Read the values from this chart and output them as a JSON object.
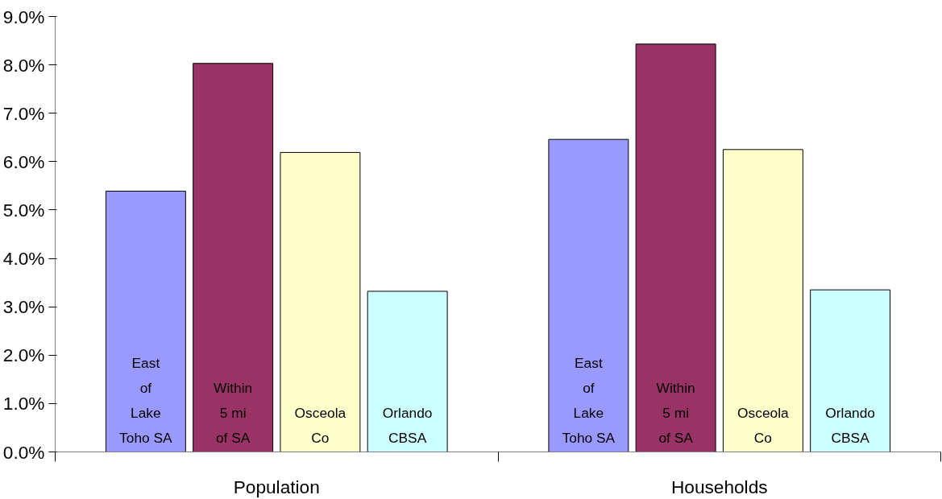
{
  "chart_data": {
    "type": "bar",
    "categories": [
      "Population",
      "Households"
    ],
    "series": [
      {
        "name": "East\nof\nLake\nToho SA",
        "color": "#9999ff",
        "values": [
          5.39,
          6.46
        ]
      },
      {
        "name": "Within\n5 mi\nof SA",
        "color": "#993366",
        "values": [
          8.03,
          8.43
        ]
      },
      {
        "name": "Osceola\nCo",
        "color": "#ffffcc",
        "values": [
          6.19,
          6.25
        ]
      },
      {
        "name": "Orlando\nCBSA",
        "color": "#ccffff",
        "values": [
          3.32,
          3.35
        ]
      }
    ],
    "ylim": [
      0,
      9
    ],
    "yticks": [
      {
        "value": 0,
        "label": "0.0%"
      },
      {
        "value": 1,
        "label": "1.0%"
      },
      {
        "value": 2,
        "label": "2.0%"
      },
      {
        "value": 3,
        "label": "3.0%"
      },
      {
        "value": 4,
        "label": "4.0%"
      },
      {
        "value": 5,
        "label": "5.0%"
      },
      {
        "value": 6,
        "label": "6.0%"
      },
      {
        "value": 7,
        "label": "7.0%"
      },
      {
        "value": 8,
        "label": "8.0%"
      },
      {
        "value": 9,
        "label": "9.0%"
      }
    ],
    "grid": false,
    "legend": false
  }
}
